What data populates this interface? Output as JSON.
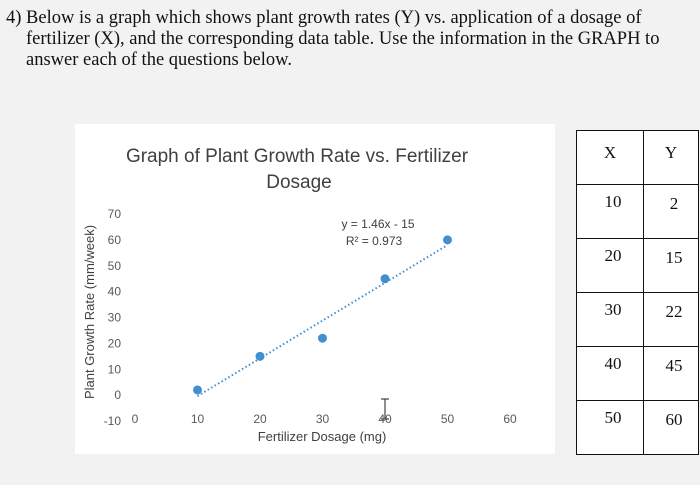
{
  "question": {
    "number": "4)",
    "line1": "Below is a graph which shows plant growth rates (Y) vs. application of a dosage of",
    "line2": "fertilizer (X), and the corresponding data table.  Use the information in the GRAPH to",
    "line3": "answer each of the questions below."
  },
  "chart_data": {
    "type": "scatter",
    "title": "Graph of Plant Growth Rate vs. Fertilizer Dosage",
    "title_line1": "Graph of Plant Growth Rate vs. Fertilizer",
    "title_line2": "Dosage",
    "xlabel": "Fertilizer Dosage (mg)",
    "ylabel": "Plant Growth Rate (mm/week)",
    "xlim": [
      0,
      60
    ],
    "ylim": [
      -10,
      70
    ],
    "x_ticks": [
      "0",
      "10",
      "20",
      "30",
      "40",
      "50",
      "60"
    ],
    "y_ticks": [
      "70",
      "60",
      "50",
      "40",
      "30",
      "20",
      "10",
      "0",
      "-10"
    ],
    "grid": false,
    "points": [
      {
        "x": 10,
        "y": 2
      },
      {
        "x": 20,
        "y": 15
      },
      {
        "x": 30,
        "y": 22
      },
      {
        "x": 40,
        "y": 45
      },
      {
        "x": 50,
        "y": 60
      }
    ],
    "trendline": {
      "slope": 1.46,
      "intercept": -15,
      "x_start": 10,
      "x_end": 50,
      "equation": "y = 1.46x - 15",
      "r_squared": "R² = 0.973"
    },
    "colors": {
      "point": "#3f8fd2",
      "trendline": "#3f8fd2"
    }
  },
  "table": {
    "headers": [
      "X",
      "Y"
    ],
    "rows": [
      [
        "10",
        "2"
      ],
      [
        "20",
        "15"
      ],
      [
        "30",
        "22"
      ],
      [
        "40",
        "45"
      ],
      [
        "50",
        "60"
      ]
    ]
  }
}
